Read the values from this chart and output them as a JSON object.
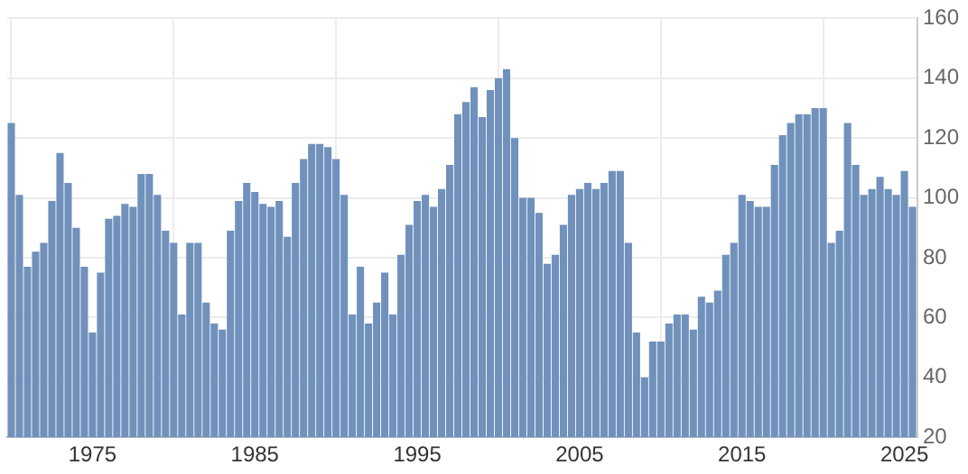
{
  "chart_data": {
    "type": "bar",
    "x": [
      1970,
      1970.5,
      1971,
      1971.5,
      1972,
      1972.5,
      1973,
      1973.5,
      1974,
      1974.5,
      1975,
      1975.5,
      1976,
      1976.5,
      1977,
      1977.5,
      1978,
      1978.5,
      1979,
      1979.5,
      1980,
      1980.5,
      1981,
      1981.5,
      1982,
      1982.5,
      1983,
      1983.5,
      1984,
      1984.5,
      1985,
      1985.5,
      1986,
      1986.5,
      1987,
      1987.5,
      1988,
      1988.5,
      1989,
      1989.5,
      1990,
      1990.5,
      1991,
      1991.5,
      1992,
      1992.5,
      1993,
      1993.5,
      1994,
      1994.5,
      1995,
      1995.5,
      1996,
      1996.5,
      1997,
      1997.5,
      1998,
      1998.5,
      1999,
      1999.5,
      2000,
      2000.5,
      2001,
      2001.5,
      2002,
      2002.5,
      2003,
      2003.5,
      2004,
      2004.5,
      2005,
      2005.5,
      2006,
      2006.5,
      2007,
      2007.5,
      2008,
      2008.5,
      2009,
      2009.5,
      2010,
      2010.5,
      2011,
      2011.5,
      2012,
      2012.5,
      2013,
      2013.5,
      2014,
      2014.5,
      2015,
      2015.5,
      2016,
      2016.5,
      2017,
      2017.5,
      2018,
      2018.5,
      2019,
      2019.5,
      2020,
      2020.5,
      2021,
      2021.5,
      2022,
      2022.5,
      2023,
      2023.5,
      2024,
      2024.5,
      2025,
      2025.5
    ],
    "values": [
      125,
      101,
      77,
      82,
      85,
      99,
      115,
      105,
      90,
      77,
      55,
      75,
      93,
      94,
      98,
      97,
      108,
      108,
      101,
      89,
      85,
      61,
      85,
      85,
      65,
      58,
      56,
      89,
      99,
      105,
      102,
      98,
      97,
      99,
      87,
      105,
      113,
      118,
      118,
      117,
      113,
      101,
      61,
      77,
      58,
      65,
      75,
      61,
      81,
      91,
      99,
      101,
      97,
      103,
      111,
      128,
      132,
      137,
      127,
      136,
      140,
      143,
      120,
      100,
      100,
      95,
      78,
      81,
      91,
      101,
      103,
      105,
      103,
      105,
      109,
      109,
      85,
      55,
      40,
      52,
      52,
      58,
      61,
      61,
      56,
      67,
      65,
      69,
      81,
      85,
      101,
      99,
      97,
      97,
      111,
      121,
      125,
      128,
      128,
      130,
      130,
      85,
      89,
      125,
      111,
      101,
      103,
      107,
      103,
      101,
      109,
      97
    ],
    "color": "#7091bb",
    "xlim": [
      1969.75,
      2025.8
    ],
    "xticks": [
      1975,
      1985,
      1995,
      2005,
      2015,
      2025
    ],
    "ylim": [
      20,
      160
    ],
    "yticks": [
      20,
      40,
      60,
      80,
      100,
      120,
      140,
      160
    ],
    "grid": true,
    "legend": false
  }
}
